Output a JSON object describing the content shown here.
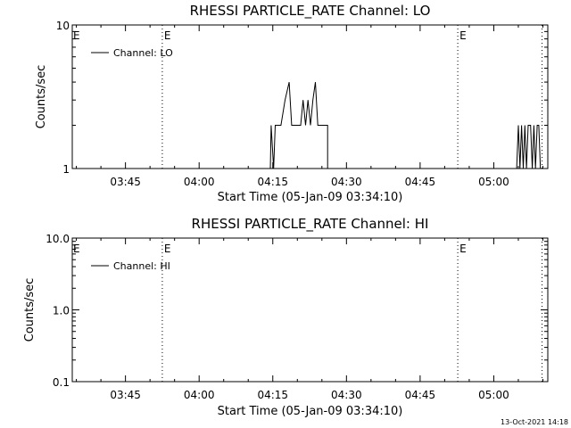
{
  "chart_data": [
    {
      "type": "line",
      "title": "RHESSI PARTICLE_RATE Channel: LO",
      "xlabel": "Start Time (05-Jan-09 03:34:10)",
      "ylabel": "Counts/sec",
      "yscale": "log",
      "ylim": [
        1,
        10
      ],
      "yticks": [
        "1",
        "10"
      ],
      "xlim": [
        "03:34:10",
        "05:11:00"
      ],
      "xticks": [
        "03:45",
        "04:00",
        "04:15",
        "04:30",
        "04:45",
        "05:00"
      ],
      "legend": {
        "placement": "top-left",
        "entries": [
          "Channel: LO"
        ]
      },
      "markers": [
        {
          "time": "03:52:30",
          "label": "E"
        },
        {
          "time": "04:52:40",
          "label": "E"
        },
        {
          "time": "05:09:50",
          "label": ""
        }
      ],
      "series": [
        {
          "name": "Channel: LO",
          "points": [
            [
              "04:14:30",
              1
            ],
            [
              "04:14:40",
              2
            ],
            [
              "04:15:10",
              1
            ],
            [
              "04:15:30",
              2
            ],
            [
              "04:16:40",
              2
            ],
            [
              "04:17:30",
              3
            ],
            [
              "04:18:20",
              4
            ],
            [
              "04:18:50",
              2
            ],
            [
              "04:20:40",
              2
            ],
            [
              "04:21:10",
              3
            ],
            [
              "04:21:40",
              2
            ],
            [
              "04:22:10",
              3
            ],
            [
              "04:22:40",
              2
            ],
            [
              "04:23:10",
              3
            ],
            [
              "04:23:40",
              4
            ],
            [
              "04:24:10",
              2
            ],
            [
              "04:26:10",
              2
            ],
            [
              "04:26:10",
              1
            ],
            null,
            [
              "05:04:40",
              1
            ],
            [
              "05:05:00",
              2
            ],
            [
              "05:05:20",
              1
            ],
            [
              "05:05:40",
              2
            ],
            [
              "05:06:00",
              1
            ],
            [
              "05:06:20",
              2
            ],
            [
              "05:06:40",
              1
            ],
            [
              "05:07:00",
              2
            ],
            [
              "05:07:30",
              2
            ],
            [
              "05:07:50",
              1
            ],
            [
              "05:08:10",
              2
            ],
            [
              "05:08:30",
              1
            ],
            [
              "05:08:50",
              2
            ],
            [
              "05:09:10",
              2
            ],
            [
              "05:09:30",
              1
            ]
          ]
        }
      ]
    },
    {
      "type": "line",
      "title": "RHESSI PARTICLE_RATE Channel: HI",
      "xlabel": "Start Time (05-Jan-09 03:34:10)",
      "ylabel": "Counts/sec",
      "yscale": "log",
      "ylim": [
        0.1,
        10
      ],
      "yticks": [
        "0.1",
        "1.0",
        "10.0"
      ],
      "xlim": [
        "03:34:10",
        "05:11:00"
      ],
      "xticks": [
        "03:45",
        "04:00",
        "04:15",
        "04:30",
        "04:45",
        "05:00"
      ],
      "legend": {
        "placement": "top-left",
        "entries": [
          "Channel: HI"
        ]
      },
      "markers": [
        {
          "time": "03:52:30",
          "label": "E"
        },
        {
          "time": "04:52:40",
          "label": "E"
        },
        {
          "time": "05:09:50",
          "label": ""
        }
      ],
      "series": [
        {
          "name": "Channel: HI",
          "points": []
        }
      ]
    }
  ],
  "footer": {
    "timestamp": "13-Oct-2021 14:18"
  }
}
